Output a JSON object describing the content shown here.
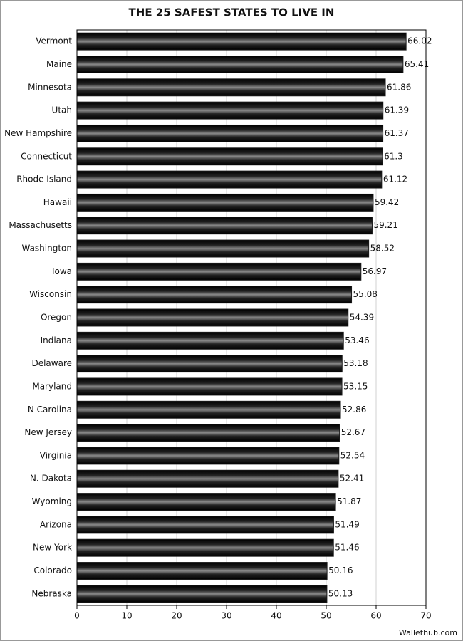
{
  "chart_data": {
    "type": "hbar",
    "title": "THE 25 SAFEST STATES TO LIVE IN",
    "categories": [
      "Vermont",
      "Maine",
      "Minnesota",
      "Utah",
      "New Hampshire",
      "Connecticut",
      "Rhode Island",
      "Hawaii",
      "Massachusetts",
      "Washington",
      "Iowa",
      "Wisconsin",
      "Oregon",
      "Indiana",
      "Delaware",
      "Maryland",
      "N Carolina",
      "New Jersey",
      "Virginia",
      "N. Dakota",
      "Wyoming",
      "Arizona",
      "New York",
      "Colorado",
      "Nebraska"
    ],
    "values": [
      66.02,
      65.41,
      61.86,
      61.39,
      61.37,
      61.3,
      61.12,
      59.42,
      59.21,
      58.52,
      56.97,
      55.08,
      54.39,
      53.46,
      53.18,
      53.15,
      52.86,
      52.67,
      52.54,
      52.41,
      51.87,
      51.49,
      51.46,
      50.16,
      50.13
    ],
    "color": "#1a1a1a",
    "xlim": [
      0,
      70
    ],
    "xticks": [
      0,
      10,
      20,
      30,
      40,
      50,
      60,
      70
    ],
    "grid": true,
    "source": "Wallethub.com"
  }
}
